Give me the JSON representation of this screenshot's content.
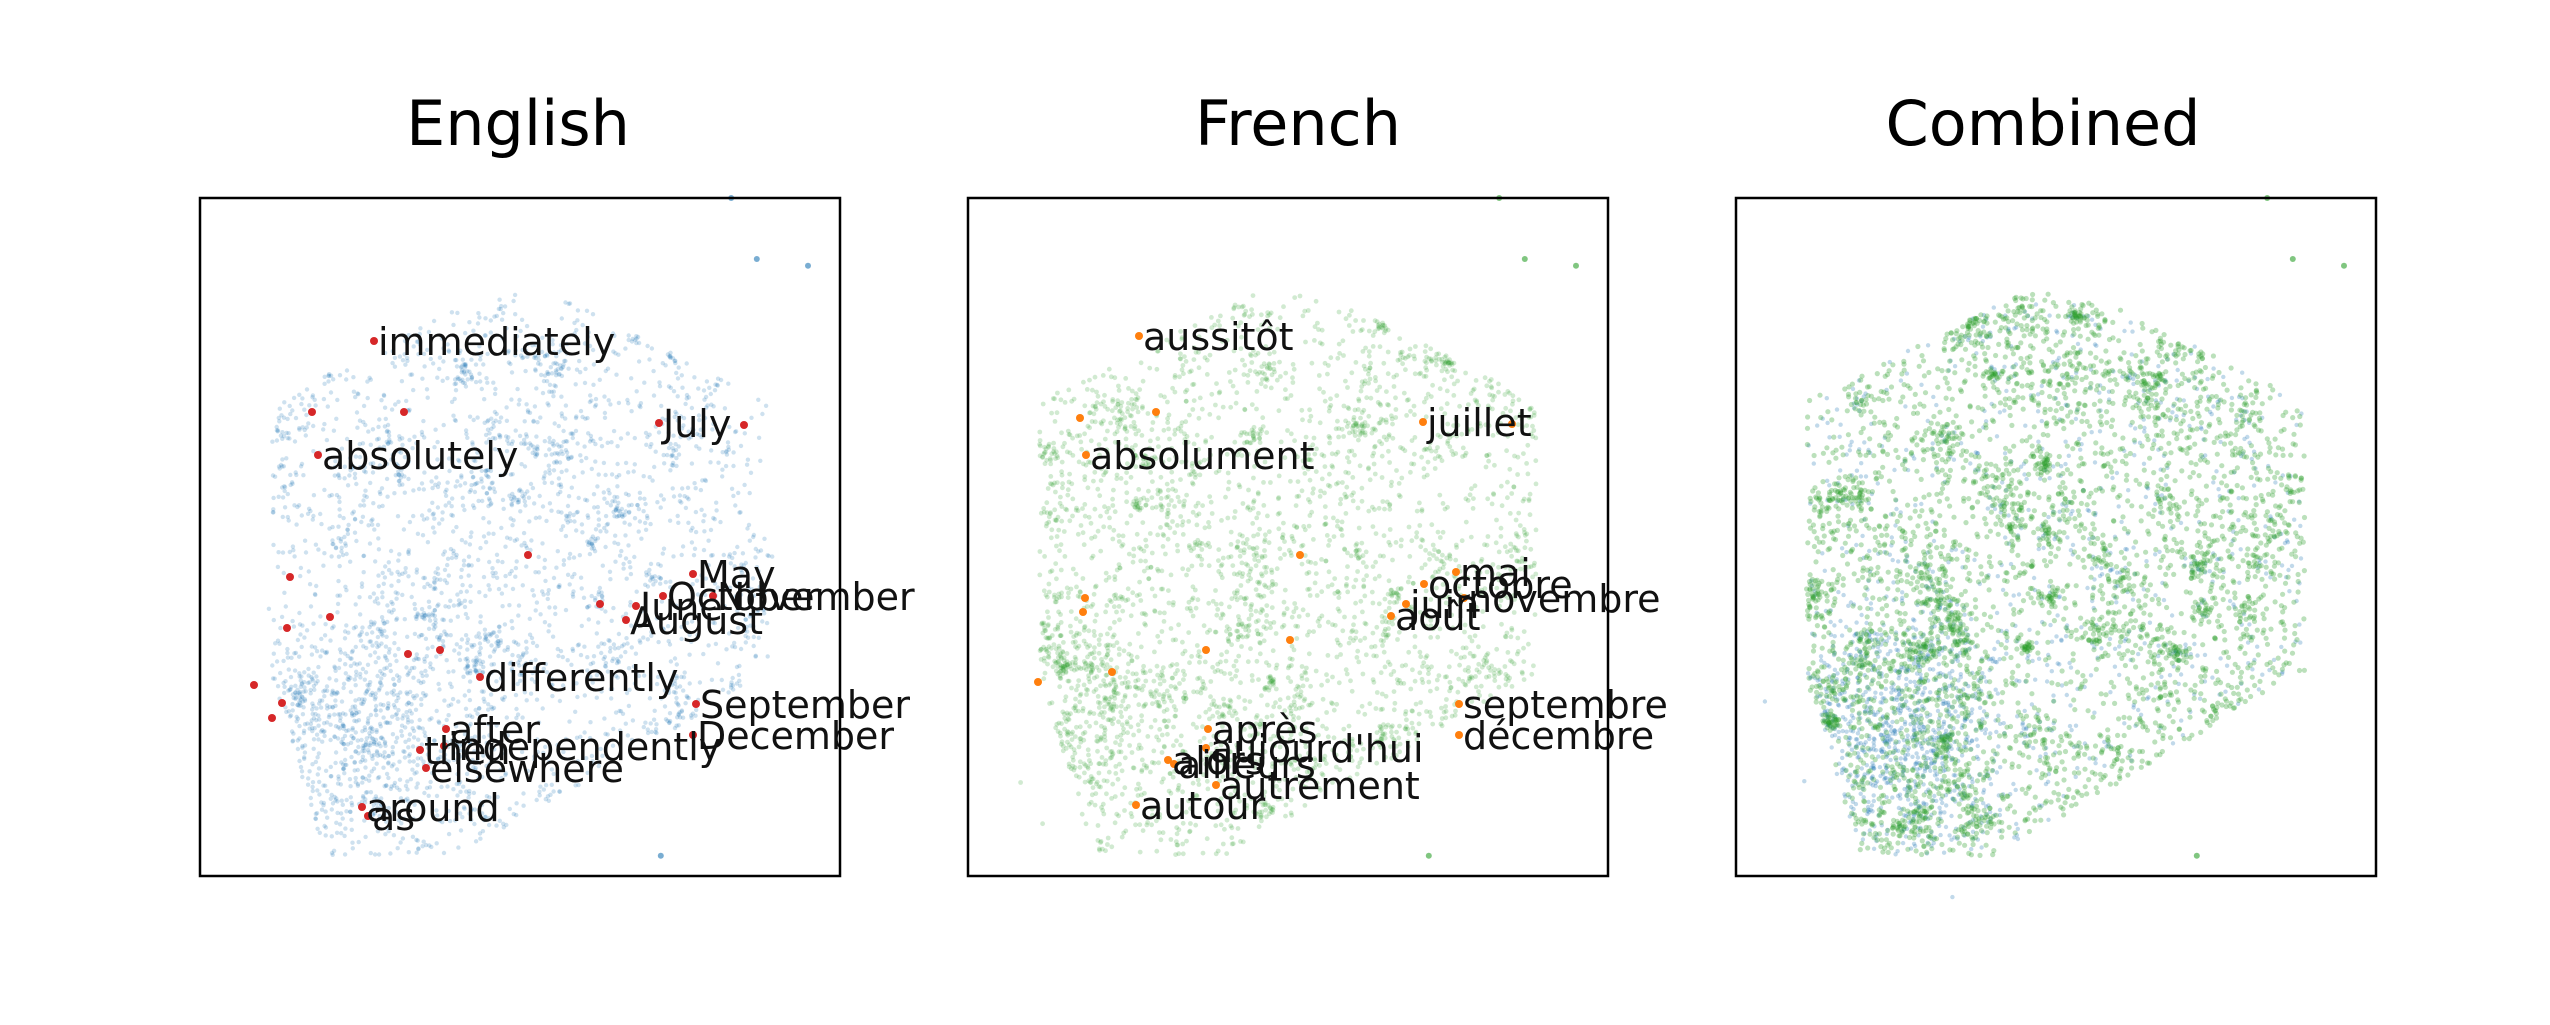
{
  "chart_data": [
    {
      "type": "scatter",
      "title": "English",
      "series": [],
      "colors": {
        "points": "#1f77b4",
        "highlight": "#d62728"
      },
      "highlighted_words": [
        "immediately",
        "July",
        "absolutely",
        "May",
        "October",
        "November",
        "June",
        "August",
        "differently",
        "September",
        "December",
        "after",
        "then",
        "independently",
        "elsewhere",
        "around",
        "as"
      ],
      "grid": false,
      "axes_ticks": false
    },
    {
      "type": "scatter",
      "title": "French",
      "series": [],
      "colors": {
        "points": "#2ca02c",
        "highlight": "#ff7f0e"
      },
      "highlighted_words": [
        "aussitôt",
        "juillet",
        "absolument",
        "mai",
        "octobre",
        "juin",
        "novembre",
        "août",
        "septembre",
        "décembre",
        "après",
        "aujourd'hui",
        "ailleurs",
        "alors",
        "autrement",
        "autour"
      ],
      "grid": false,
      "axes_ticks": false
    },
    {
      "type": "scatter",
      "title": "Combined",
      "series": [],
      "colors": {
        "points_en": "#1f77b4",
        "points_fr": "#2ca02c"
      },
      "grid": false,
      "axes_ticks": false
    }
  ]
}
